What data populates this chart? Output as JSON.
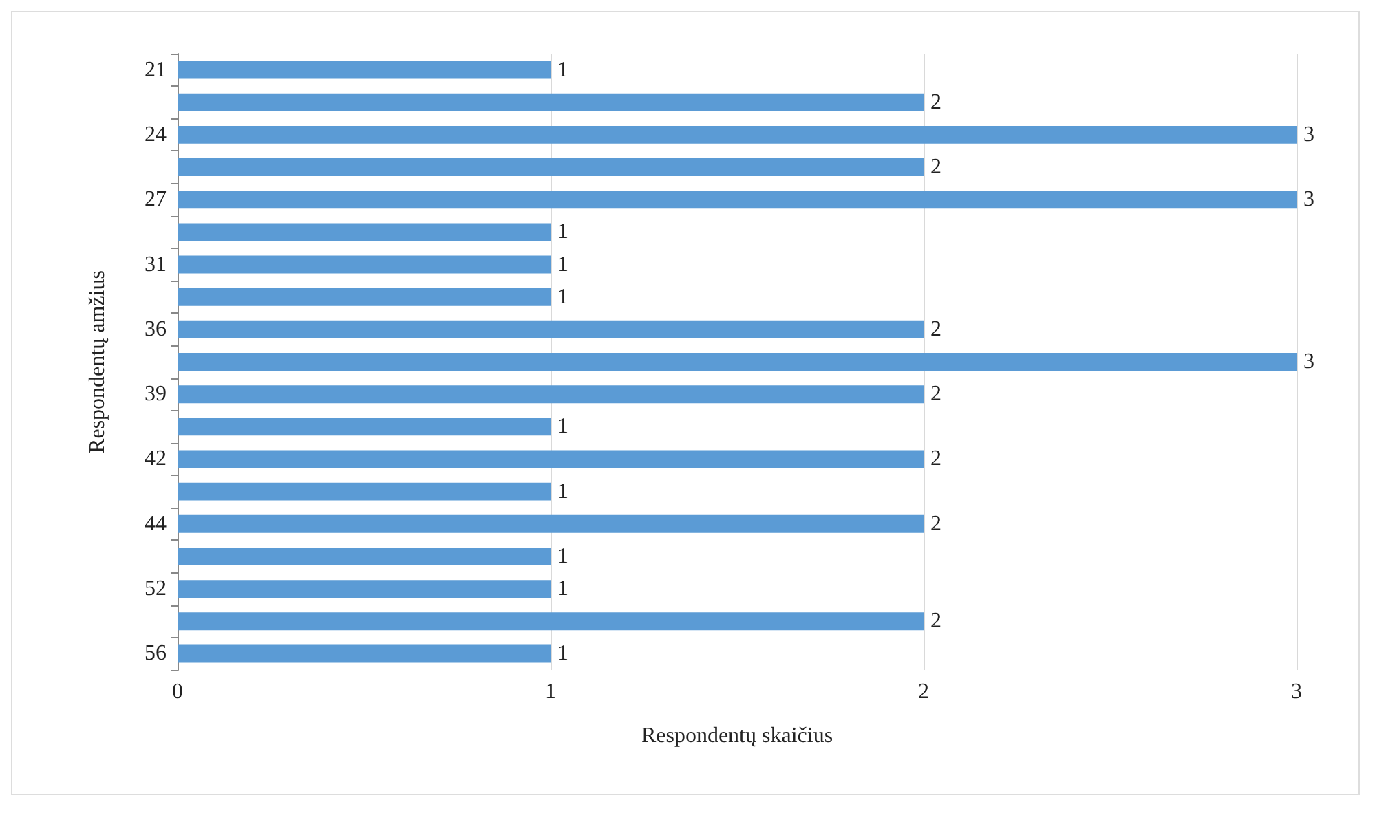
{
  "chart_data": {
    "type": "bar",
    "orientation": "horizontal",
    "xlabel": "Respondentų skaičius",
    "ylabel": "Respondentų amžius",
    "categories": [
      "21",
      null,
      "24",
      null,
      "27",
      null,
      "31",
      null,
      "36",
      null,
      "39",
      null,
      "42",
      null,
      "44",
      null,
      "52",
      null,
      "56"
    ],
    "values": [
      1,
      2,
      3,
      2,
      3,
      1,
      1,
      1,
      2,
      3,
      2,
      1,
      2,
      1,
      2,
      1,
      1,
      2,
      1
    ],
    "color": "#5b9bd5",
    "xlim": [
      0,
      3
    ],
    "xticks": [
      0,
      1,
      2,
      3
    ],
    "grid": "x",
    "data_labels": true
  }
}
